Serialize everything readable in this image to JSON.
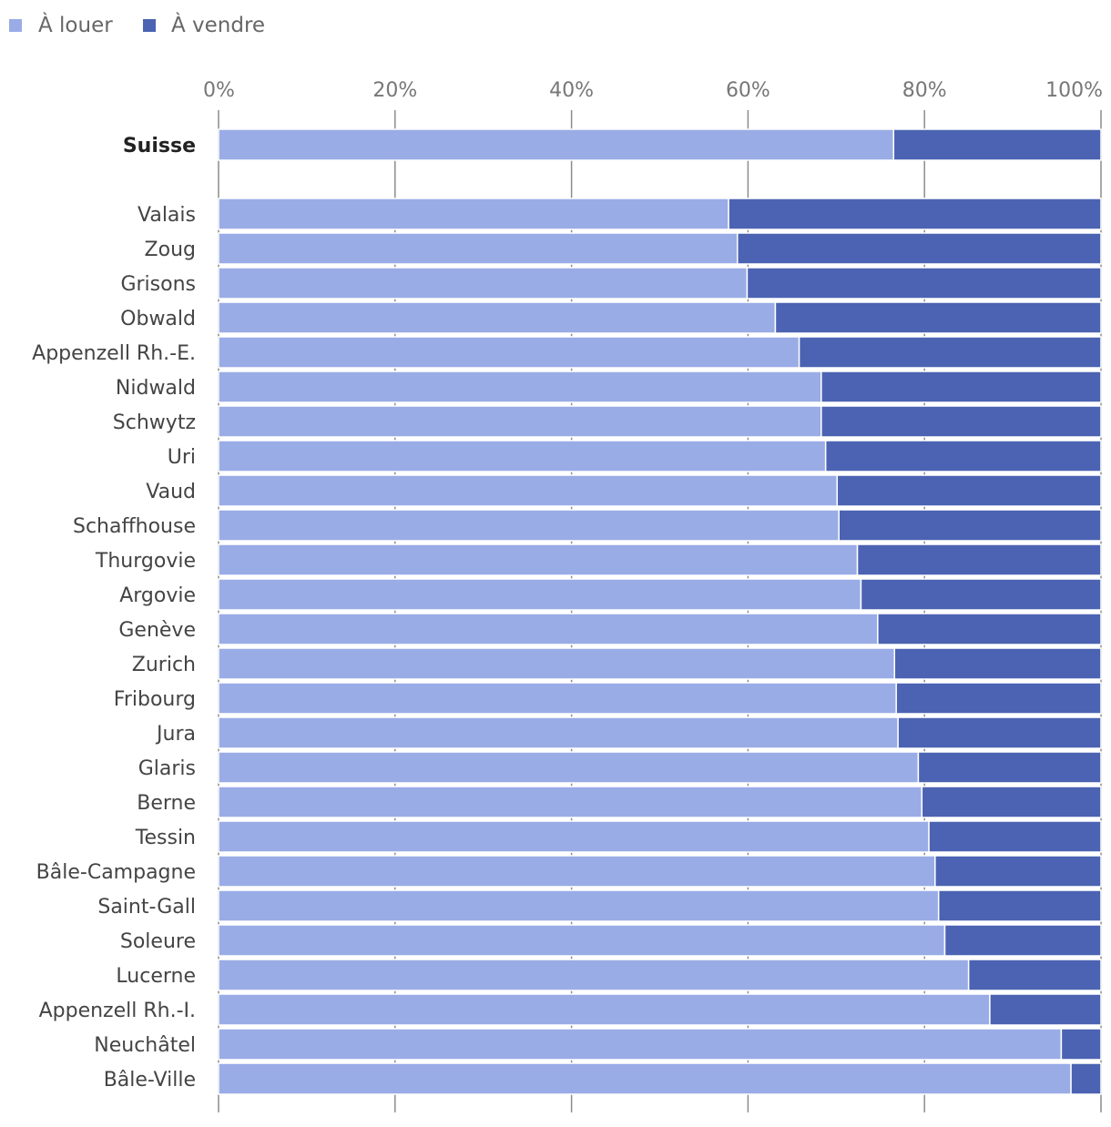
{
  "legend": {
    "items": [
      {
        "label": "À louer",
        "color": "#9aace6"
      },
      {
        "label": "À vendre",
        "color": "#4b63b2"
      }
    ]
  },
  "chart_data": {
    "type": "bar",
    "orientation": "horizontal",
    "stacked": true,
    "title": "",
    "xlabel": "",
    "ylabel": "",
    "xlim": [
      0,
      100
    ],
    "x_ticks": [
      0,
      20,
      40,
      60,
      80,
      100
    ],
    "x_tick_labels": [
      "0%",
      "20%",
      "40%",
      "60%",
      "80%",
      "100%"
    ],
    "grid": true,
    "legend_position": "top-left",
    "total_category": "Suisse",
    "categories": [
      "Suisse",
      "Valais",
      "Zoug",
      "Grisons",
      "Obwald",
      "Appenzell Rh.-E.",
      "Nidwald",
      "Schwytz",
      "Uri",
      "Vaud",
      "Schaffhouse",
      "Thurgovie",
      "Argovie",
      "Genève",
      "Zurich",
      "Fribourg",
      "Jura",
      "Glaris",
      "Berne",
      "Tessin",
      "Bâle-Campagne",
      "Saint-Gall",
      "Soleure",
      "Lucerne",
      "Appenzell Rh.-I.",
      "Neuchâtel",
      "Bâle-Ville"
    ],
    "series": [
      {
        "name": "À louer",
        "color": "#9aace6",
        "values": [
          76.5,
          57.8,
          58.8,
          59.9,
          63.1,
          65.8,
          68.3,
          68.3,
          68.8,
          70.1,
          70.3,
          72.4,
          72.8,
          74.7,
          76.6,
          76.8,
          77.0,
          79.3,
          79.7,
          80.5,
          81.2,
          81.6,
          82.3,
          85.0,
          87.4,
          95.5,
          96.6
        ]
      },
      {
        "name": "À vendre",
        "color": "#4b63b2",
        "values": [
          23.5,
          42.2,
          41.2,
          40.1,
          36.9,
          34.2,
          31.7,
          31.7,
          31.2,
          29.9,
          29.7,
          27.6,
          27.2,
          25.3,
          23.4,
          23.2,
          23.0,
          20.7,
          20.3,
          19.5,
          18.8,
          18.4,
          17.7,
          15.0,
          12.6,
          4.5,
          3.4
        ]
      }
    ]
  }
}
